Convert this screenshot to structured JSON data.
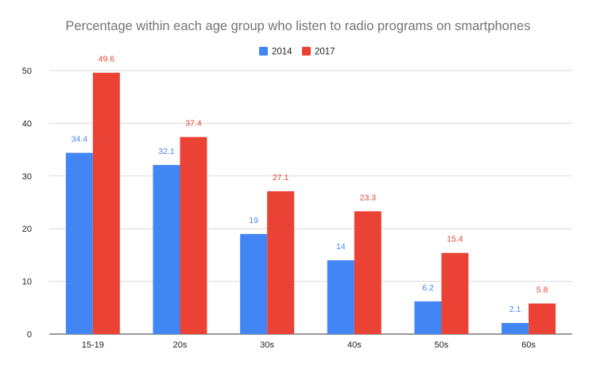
{
  "chart_data": {
    "type": "bar",
    "title": "Percentage within each age group who listen to radio programs on smartphones",
    "categories": [
      "15-19",
      "20s",
      "30s",
      "40s",
      "50s",
      "60s"
    ],
    "series": [
      {
        "name": "2014",
        "color": "#4285f4",
        "values": [
          34.4,
          32.1,
          19,
          14,
          6.2,
          2.1
        ]
      },
      {
        "name": "2017",
        "color": "#ea4335",
        "values": [
          49.6,
          37.4,
          27.1,
          23.3,
          15.4,
          5.8
        ]
      }
    ],
    "ylim": [
      0,
      50
    ],
    "yticks": [
      0,
      10,
      20,
      30,
      40,
      50
    ],
    "xlabel": "",
    "ylabel": "",
    "grid": true,
    "legend_position": "top-center"
  }
}
